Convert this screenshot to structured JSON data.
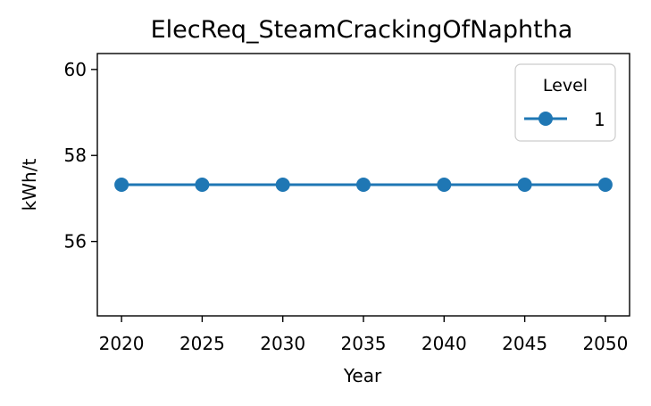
{
  "chart_data": {
    "type": "line",
    "title": "ElecReq_SteamCrackingOfNaphtha",
    "xlabel": "Year",
    "ylabel": "kWh/t",
    "x": [
      2020,
      2025,
      2030,
      2035,
      2040,
      2045,
      2050
    ],
    "xticks": [
      "2020",
      "2025",
      "2030",
      "2035",
      "2040",
      "2045",
      "2050"
    ],
    "yticks": [
      "56",
      "58",
      "60"
    ],
    "xlim": [
      2018.5,
      2051.5
    ],
    "ylim": [
      54.27,
      60.37
    ],
    "grid": false,
    "legend": {
      "title": "Level",
      "placement": "top-right"
    },
    "series": [
      {
        "name": "1",
        "color": "#1f77b4",
        "marker": "circle",
        "values": [
          57.32,
          57.32,
          57.32,
          57.32,
          57.32,
          57.32,
          57.32
        ]
      }
    ]
  }
}
